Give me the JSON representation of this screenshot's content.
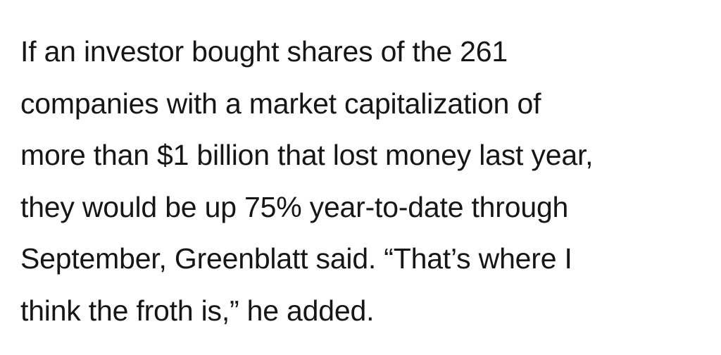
{
  "paragraph": {
    "lines": [
      "If an investor bought shares of the 261",
      "companies with a market capitalization of",
      "more than $1 billion that lost money last year,",
      "they would be up 75% year-to-date through",
      "September, Greenblatt said. “That’s where I",
      "think the froth is,” he added."
    ]
  }
}
